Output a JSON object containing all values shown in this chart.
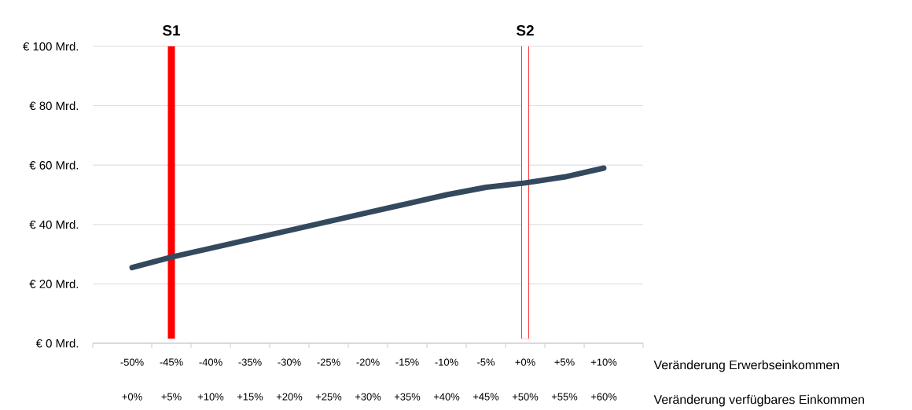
{
  "chart_data": {
    "type": "line",
    "x": [
      -50,
      -45,
      -40,
      -35,
      -30,
      -25,
      -20,
      -15,
      -10,
      -5,
      0,
      5,
      10
    ],
    "series": [
      {
        "color": "#34495e",
        "values": [
          25.5,
          29,
          32,
          35,
          38,
          41,
          44,
          47,
          50,
          52.5,
          54,
          56,
          59
        ]
      }
    ],
    "xlim": [
      -55,
      15
    ],
    "xticks": [
      {
        "value": -50,
        "label": "-50%"
      },
      {
        "value": -45,
        "label": "-45%"
      },
      {
        "value": -40,
        "label": "-40%"
      },
      {
        "value": -35,
        "label": "-35%"
      },
      {
        "value": -30,
        "label": "-30%"
      },
      {
        "value": -25,
        "label": "-25%"
      },
      {
        "value": -20,
        "label": "-20%"
      },
      {
        "value": -15,
        "label": "-15%"
      },
      {
        "value": -10,
        "label": "-10%"
      },
      {
        "value": -5,
        "label": "-5%"
      },
      {
        "value": 0,
        "label": "+0%"
      },
      {
        "value": 5,
        "label": "+5%"
      },
      {
        "value": 10,
        "label": "+10%"
      }
    ],
    "xlabel": "Veränderung Erwerbseinkommen",
    "x2lim": [
      -5,
      65
    ],
    "x2ticks": [
      {
        "value": 0,
        "label": "+0%"
      },
      {
        "value": 5,
        "label": "+5%"
      },
      {
        "value": 10,
        "label": "+10%"
      },
      {
        "value": 15,
        "label": "+15%"
      },
      {
        "value": 20,
        "label": "+20%"
      },
      {
        "value": 25,
        "label": "+25%"
      },
      {
        "value": 30,
        "label": "+30%"
      },
      {
        "value": 35,
        "label": "+35%"
      },
      {
        "value": 40,
        "label": "+40%"
      },
      {
        "value": 45,
        "label": "+45%"
      },
      {
        "value": 50,
        "label": "+50%"
      },
      {
        "value": 55,
        "label": "+55%"
      },
      {
        "value": 60,
        "label": "+60%"
      }
    ],
    "x2label": "Veränderung verfügbares Einkommen",
    "ylim": [
      0,
      100
    ],
    "yticks": [
      {
        "value": 0,
        "label": "€ 0 Mrd."
      },
      {
        "value": 20,
        "label": "€ 20 Mrd."
      },
      {
        "value": 40,
        "label": "€ 40 Mrd."
      },
      {
        "value": 60,
        "label": "€ 60 Mrd."
      },
      {
        "value": 80,
        "label": "€ 80 Mrd."
      },
      {
        "value": 100,
        "label": "€ 100 Mrd."
      }
    ],
    "grid": "y",
    "marker": "none",
    "line_style": "solid",
    "ref_lines": [
      {
        "axis": "x",
        "value": -45,
        "label": "S1",
        "color": "#ff0000",
        "line_style": "solid"
      },
      {
        "axis": "x",
        "value": 0,
        "label": "S2",
        "color": "#ff0000"
      }
    ]
  }
}
